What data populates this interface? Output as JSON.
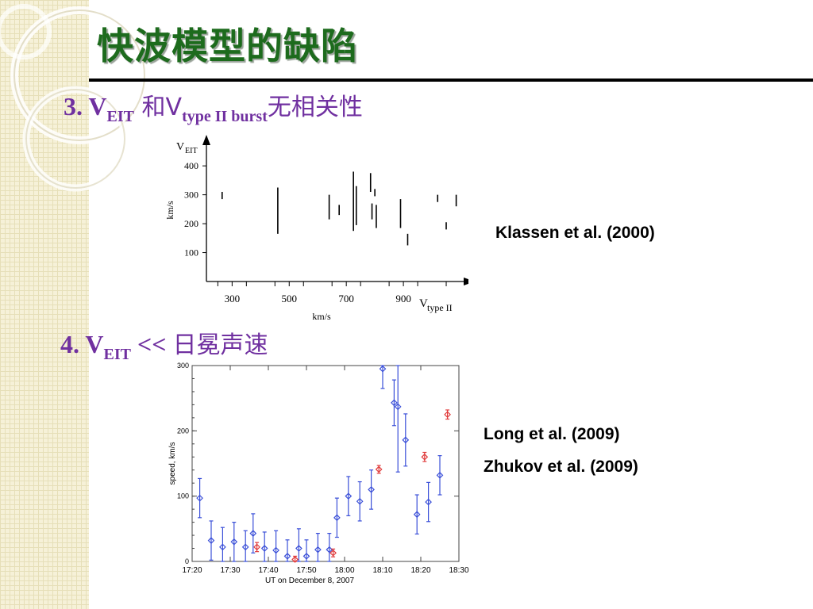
{
  "slide": {
    "title": "快波模型的缺陷",
    "point3": {
      "number": "3. V",
      "sub1": "EIT",
      "and": " 和V",
      "sub2": "type II burst",
      "tail": "无相关性"
    },
    "point4": {
      "number": "4. V",
      "sub1": "EIT",
      "op": " << ",
      "tail": "日冕声速"
    },
    "references": {
      "chart1": "Klassen et al. (2000)",
      "chart2a": "Long et al. (2009)",
      "chart2b": "Zhukov et al.  (2009)"
    }
  },
  "chart_data": [
    {
      "type": "scatter",
      "title": "",
      "ylabel_main": "V",
      "ylabel_sub": "EIT",
      "ylabel_units": "km/s",
      "xlabel_main": "V",
      "xlabel_sub": "type II",
      "xlabel_units": "km/s",
      "xlim": [
        210,
        1100
      ],
      "ylim": [
        0,
        480
      ],
      "xticks": [
        300,
        500,
        700,
        900
      ],
      "yticks": [
        100,
        200,
        300,
        400
      ],
      "xtick_labels": [
        "300",
        "500",
        "700",
        "900"
      ],
      "ytick_labels": [
        "100",
        "200",
        "300",
        "400"
      ],
      "ranges": [
        {
          "x": 265,
          "y_low": 285,
          "y_high": 310
        },
        {
          "x": 460,
          "y_low": 165,
          "y_high": 325
        },
        {
          "x": 640,
          "y_low": 215,
          "y_high": 300
        },
        {
          "x": 675,
          "y_low": 230,
          "y_high": 265
        },
        {
          "x": 725,
          "y_low": 175,
          "y_high": 380
        },
        {
          "x": 735,
          "y_low": 195,
          "y_high": 330
        },
        {
          "x": 785,
          "y_low": 310,
          "y_high": 375
        },
        {
          "x": 790,
          "y_low": 215,
          "y_high": 270
        },
        {
          "x": 800,
          "y_low": 295,
          "y_high": 320
        },
        {
          "x": 805,
          "y_low": 185,
          "y_high": 265
        },
        {
          "x": 890,
          "y_low": 185,
          "y_high": 285
        },
        {
          "x": 915,
          "y_low": 125,
          "y_high": 165
        },
        {
          "x": 1020,
          "y_low": 275,
          "y_high": 300
        },
        {
          "x": 1050,
          "y_low": 180,
          "y_high": 205
        },
        {
          "x": 1085,
          "y_low": 260,
          "y_high": 300
        }
      ]
    },
    {
      "type": "scatter",
      "title": "",
      "xlabel": "UT on December 8, 2007",
      "ylabel": "speed, km/s",
      "xlim": [
        0,
        70
      ],
      "ylim": [
        0,
        300
      ],
      "xticks": [
        0,
        10,
        20,
        30,
        40,
        50,
        60,
        70
      ],
      "xtick_labels": [
        "17:20",
        "17:30",
        "17:40",
        "17:50",
        "18:00",
        "18:10",
        "18:20",
        "18:30"
      ],
      "yticks": [
        0,
        100,
        200,
        300
      ],
      "ytick_labels": [
        "0",
        "100",
        "200",
        "300"
      ],
      "series": [
        {
          "color": "#3a4fd8",
          "points": [
            {
              "x": 2,
              "y": 97,
              "err": 30
            },
            {
              "x": 5,
              "y": 32,
              "err": 30
            },
            {
              "x": 8,
              "y": 22,
              "err": 30
            },
            {
              "x": 11,
              "y": 30,
              "err": 30
            },
            {
              "x": 14,
              "y": 22,
              "err": 25
            },
            {
              "x": 16,
              "y": 43,
              "err": 30
            },
            {
              "x": 19,
              "y": 20,
              "err": 25
            },
            {
              "x": 22,
              "y": 17,
              "err": 30
            },
            {
              "x": 25,
              "y": 8,
              "err": 25
            },
            {
              "x": 28,
              "y": 20,
              "err": 30
            },
            {
              "x": 30,
              "y": 8,
              "err": 25
            },
            {
              "x": 33,
              "y": 18,
              "err": 25
            },
            {
              "x": 36,
              "y": 18,
              "err": 25
            },
            {
              "x": 38,
              "y": 67,
              "err": 30
            },
            {
              "x": 41,
              "y": 100,
              "err": 30
            },
            {
              "x": 44,
              "y": 92,
              "err": 30
            },
            {
              "x": 47,
              "y": 110,
              "err": 30
            },
            {
              "x": 50,
              "y": 295,
              "err": 30
            },
            {
              "x": 53,
              "y": 243,
              "err": 35
            },
            {
              "x": 54,
              "y": 237,
              "err": 100
            },
            {
              "x": 56,
              "y": 186,
              "err": 40
            },
            {
              "x": 59,
              "y": 72,
              "err": 30
            },
            {
              "x": 62,
              "y": 91,
              "err": 30
            },
            {
              "x": 65,
              "y": 132,
              "err": 30
            }
          ]
        },
        {
          "color": "#e03b3b",
          "points": [
            {
              "x": 17,
              "y": 22,
              "err": 7
            },
            {
              "x": 27,
              "y": 3,
              "err": 5
            },
            {
              "x": 37,
              "y": 13,
              "err": 6
            },
            {
              "x": 49,
              "y": 141,
              "err": 6
            },
            {
              "x": 61,
              "y": 160,
              "err": 7
            },
            {
              "x": 67,
              "y": 225,
              "err": 7
            }
          ]
        }
      ]
    }
  ]
}
